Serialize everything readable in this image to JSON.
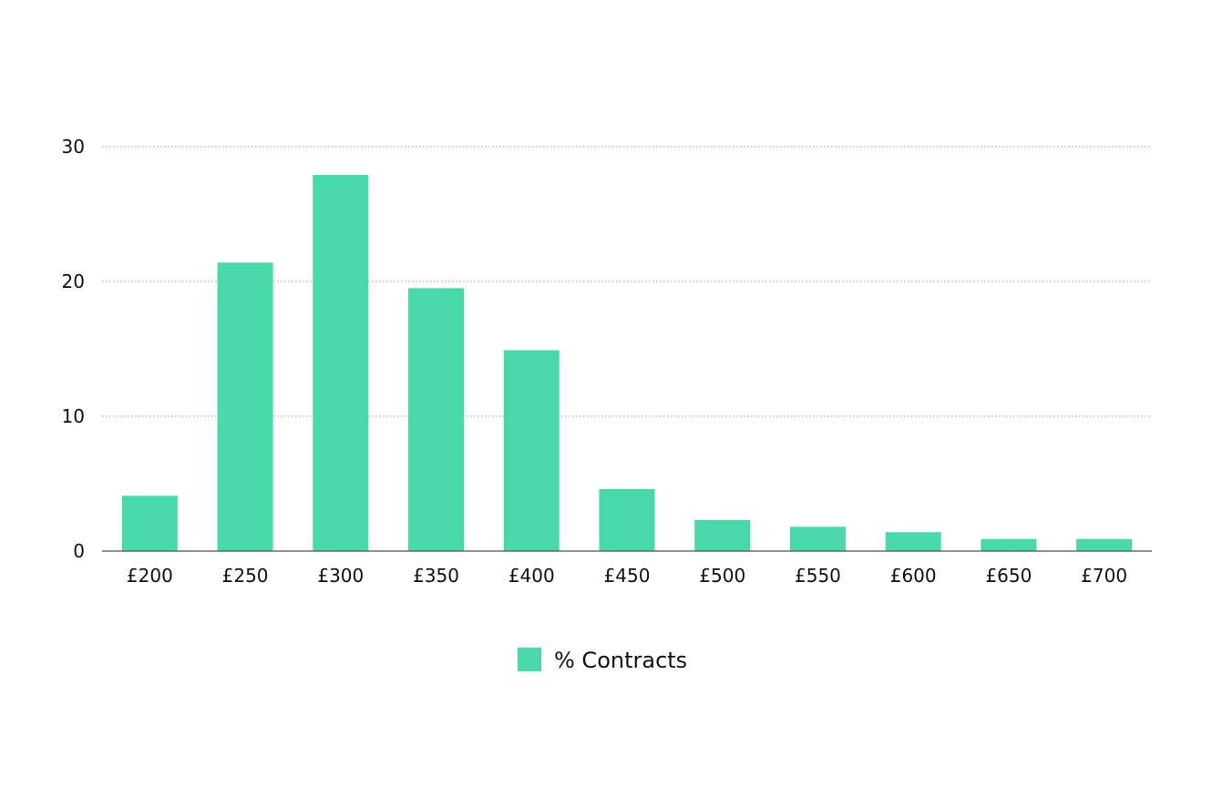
{
  "chart_data": {
    "type": "bar",
    "categories": [
      "£200",
      "£250",
      "£300",
      "£350",
      "£400",
      "£450",
      "£500",
      "£550",
      "£600",
      "£650",
      "£700"
    ],
    "series": [
      {
        "name": "% Contracts",
        "values": [
          4.1,
          21.4,
          27.9,
          19.5,
          14.9,
          4.6,
          2.3,
          1.8,
          1.4,
          0.9,
          0.9
        ],
        "color": "#47d9aa"
      }
    ],
    "yticks": [
      "0",
      "10",
      "20",
      "30"
    ],
    "ylim": [
      0,
      30
    ],
    "grid": true,
    "legend_position": "bottom-center"
  }
}
